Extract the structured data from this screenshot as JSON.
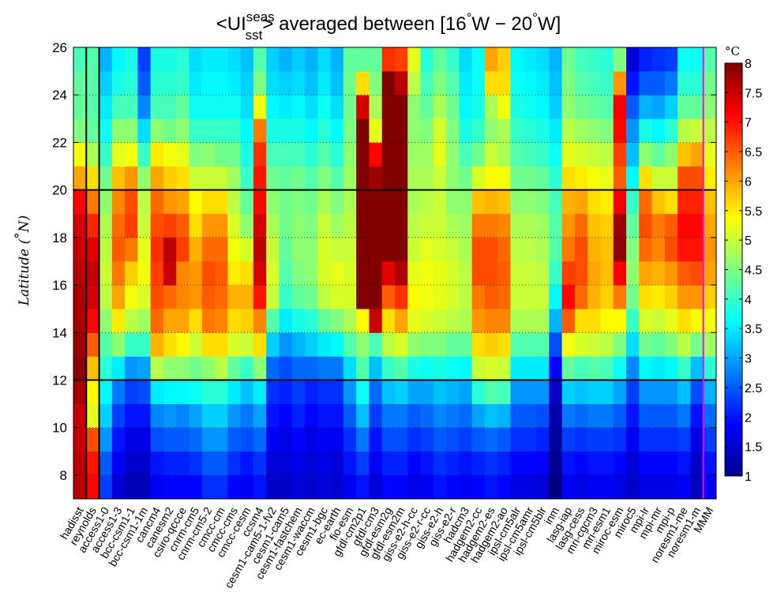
{
  "chart_data": {
    "type": "heatmap",
    "title": {
      "prefix": "<UI",
      "superscript": "seas",
      "subscript": "sst",
      "suffix": "> averaged between [16",
      "deg1": "°",
      "mid": "W − 20",
      "deg2": "°",
      "end": "W]"
    },
    "ylabel": "Latitude (°N)",
    "ylabel_parts": {
      "pre": "Latitude",
      "open": " (",
      "deg": "°",
      "post": "N)"
    },
    "xlabel": "",
    "colorbar": {
      "unit_label": "°C",
      "range": [
        1,
        8
      ],
      "ticks": [
        "1",
        "1.5",
        "2",
        "2.5",
        "3",
        "3.5",
        "4",
        "4.5",
        "5",
        "5.5",
        "6",
        "6.5",
        "7",
        "7.5",
        "8"
      ],
      "colormap": "jet"
    },
    "ylim": [
      7,
      26
    ],
    "yticks": [
      "8",
      "10",
      "12",
      "14",
      "16",
      "18",
      "20",
      "22",
      "24",
      "26"
    ],
    "y_rows": [
      7.5,
      8.5,
      9.5,
      10.5,
      11.5,
      12.5,
      13.5,
      14.5,
      15.5,
      16.5,
      17.5,
      18.5,
      19.5,
      20.5,
      21.5,
      22.5,
      23.5,
      24.5,
      25.5
    ],
    "reference_lines": {
      "horizontal": [
        {
          "lat": 12,
          "color": "#000000"
        },
        {
          "lat": 20,
          "color": "#000000"
        }
      ],
      "vertical": [
        {
          "after_column": "hadisst",
          "color": "#000000"
        },
        {
          "after_column": "reynolds",
          "color": "#000000"
        },
        {
          "after_column": "noresm1-m",
          "color": "#ff00ff"
        }
      ]
    },
    "grid": "dotted",
    "columns": [
      {
        "name": "hadisst",
        "values": [
          7.6,
          7.6,
          7.5,
          7.5,
          7.7,
          7.9,
          7.8,
          7.7,
          7.7,
          7.6,
          7.5,
          7.4,
          7.1,
          6.0,
          5.3,
          4.5,
          4.3,
          4.3,
          4.1
        ]
      },
      {
        "name": "reynolds",
        "values": [
          7.1,
          7.0,
          6.6,
          5.2,
          5.4,
          5.8,
          6.5,
          7.1,
          7.4,
          7.5,
          7.3,
          6.9,
          6.3,
          5.6,
          4.8,
          4.3,
          4.2,
          4.2,
          4.2
        ]
      },
      {
        "name": "access1-0",
        "values": [
          2.3,
          2.5,
          2.9,
          3.3,
          3.6,
          3.9,
          4.2,
          4.6,
          4.9,
          5.0,
          4.9,
          4.8,
          4.6,
          4.4,
          4.0,
          3.7,
          3.5,
          3.3,
          3.1
        ]
      },
      {
        "name": "access1-3",
        "values": [
          1.6,
          1.8,
          2.0,
          2.3,
          2.7,
          3.5,
          4.6,
          5.5,
          6.0,
          6.3,
          6.5,
          6.4,
          6.2,
          5.8,
          5.2,
          4.6,
          4.1,
          3.8,
          3.6
        ]
      },
      {
        "name": "bcc-csm1-1",
        "values": [
          1.4,
          1.5,
          1.7,
          2.0,
          2.3,
          2.9,
          4.0,
          4.9,
          5.3,
          5.7,
          6.3,
          6.7,
          6.6,
          6.1,
          5.3,
          4.6,
          4.1,
          3.9,
          3.8
        ]
      },
      {
        "name": "bcc-csm1-1m",
        "values": [
          1.4,
          1.5,
          1.7,
          2.0,
          2.4,
          3.0,
          4.0,
          4.7,
          5.1,
          5.3,
          5.2,
          5.0,
          4.9,
          4.6,
          4.0,
          3.4,
          2.8,
          2.5,
          2.3
        ]
      },
      {
        "name": "cancm4",
        "values": [
          1.8,
          2.0,
          2.4,
          2.8,
          3.5,
          4.9,
          5.9,
          6.4,
          6.6,
          6.7,
          6.8,
          6.6,
          6.4,
          6.0,
          5.5,
          4.6,
          4.1,
          3.9,
          3.8
        ]
      },
      {
        "name": "canesm2",
        "values": [
          1.9,
          2.1,
          2.5,
          2.9,
          3.6,
          4.6,
          5.6,
          6.0,
          6.4,
          7.5,
          7.6,
          6.7,
          6.1,
          5.7,
          5.3,
          4.4,
          4.1,
          3.9,
          3.8
        ]
      },
      {
        "name": "csiro-qccce",
        "values": [
          1.9,
          2.1,
          2.5,
          2.8,
          3.6,
          4.6,
          5.4,
          6.0,
          6.2,
          6.2,
          6.7,
          6.5,
          6.0,
          5.6,
          5.2,
          4.6,
          4.3,
          4.0,
          3.9
        ]
      },
      {
        "name": "cnrm-cm5",
        "values": [
          1.9,
          2.2,
          2.6,
          3.0,
          3.7,
          4.4,
          5.0,
          5.6,
          6.1,
          6.1,
          5.9,
          5.6,
          5.4,
          5.0,
          4.5,
          4.0,
          3.7,
          3.5,
          3.4
        ]
      },
      {
        "name": "cnrm-cm5-2",
        "values": [
          2.2,
          2.5,
          2.9,
          3.3,
          3.9,
          4.6,
          5.6,
          6.3,
          6.5,
          6.6,
          6.4,
          6.1,
          5.6,
          5.0,
          4.6,
          4.0,
          3.7,
          3.6,
          3.5
        ]
      },
      {
        "name": "cmcc-cm",
        "values": [
          2.2,
          2.5,
          2.9,
          3.3,
          3.9,
          4.9,
          5.6,
          6.2,
          6.4,
          6.5,
          6.4,
          6.1,
          5.6,
          5.0,
          4.4,
          4.0,
          3.7,
          3.6,
          3.5
        ]
      },
      {
        "name": "cmcc-cms",
        "values": [
          1.9,
          2.2,
          2.5,
          2.9,
          3.5,
          4.3,
          5.1,
          5.6,
          5.9,
          5.5,
          5.3,
          5.1,
          4.9,
          4.7,
          4.4,
          4.0,
          3.7,
          3.5,
          3.4
        ]
      },
      {
        "name": "cmcc-cesm",
        "values": [
          1.8,
          2.0,
          2.4,
          2.7,
          3.2,
          4.0,
          5.0,
          5.7,
          5.9,
          5.6,
          5.1,
          4.6,
          4.3,
          4.0,
          3.8,
          3.6,
          3.4,
          3.3,
          3.2
        ]
      },
      {
        "name": "ccsm4",
        "values": [
          2.0,
          2.2,
          2.6,
          3.0,
          3.5,
          4.6,
          5.6,
          6.2,
          7.0,
          7.4,
          7.6,
          7.4,
          7.1,
          7.0,
          6.8,
          6.3,
          5.3,
          4.5,
          4.2
        ]
      },
      {
        "name": "cesm1-cam5-1-fv2",
        "values": [
          1.5,
          1.6,
          1.8,
          2.0,
          2.2,
          2.6,
          3.3,
          4.2,
          5.0,
          5.1,
          5.0,
          4.8,
          4.6,
          4.4,
          4.1,
          3.8,
          3.6,
          3.4,
          3.3
        ]
      },
      {
        "name": "cesm1-cam5",
        "values": [
          1.5,
          1.6,
          1.7,
          1.9,
          2.1,
          2.4,
          2.9,
          3.5,
          4.0,
          4.2,
          4.3,
          4.4,
          4.4,
          4.3,
          4.1,
          3.8,
          3.5,
          3.3,
          3.1
        ]
      },
      {
        "name": "cesm1-fastchem",
        "values": [
          1.6,
          1.7,
          1.9,
          2.1,
          2.3,
          2.6,
          3.1,
          3.8,
          4.3,
          4.5,
          4.6,
          4.6,
          4.5,
          4.4,
          4.1,
          3.8,
          3.6,
          3.4,
          3.3
        ]
      },
      {
        "name": "cesm1-waccm",
        "values": [
          1.5,
          1.6,
          1.7,
          1.9,
          2.1,
          2.6,
          3.3,
          3.9,
          4.4,
          4.6,
          4.6,
          4.5,
          4.4,
          4.2,
          3.9,
          3.6,
          3.4,
          3.2,
          3.1
        ]
      },
      {
        "name": "cesm1-bgc",
        "values": [
          1.6,
          1.7,
          1.8,
          2.0,
          2.2,
          2.7,
          3.5,
          4.3,
          4.9,
          5.1,
          5.1,
          5.0,
          4.8,
          4.5,
          4.2,
          3.9,
          3.7,
          3.5,
          3.4
        ]
      },
      {
        "name": "ec-earth",
        "values": [
          1.5,
          1.6,
          1.8,
          2.0,
          2.2,
          2.7,
          3.6,
          4.5,
          5.1,
          5.2,
          5.0,
          4.7,
          4.5,
          4.2,
          3.9,
          3.6,
          3.4,
          3.2,
          3.1
        ]
      },
      {
        "name": "fio-esm",
        "values": [
          1.8,
          2.0,
          2.2,
          2.5,
          2.9,
          3.4,
          4.2,
          4.8,
          5.1,
          5.1,
          5.0,
          4.9,
          4.8,
          4.7,
          4.6,
          4.5,
          4.4,
          4.4,
          4.3
        ]
      },
      {
        "name": "gfdl-cm2p1",
        "values": [
          2.0,
          2.3,
          2.7,
          3.2,
          3.7,
          4.2,
          4.6,
          5.4,
          8.0,
          8.0,
          8.0,
          8.0,
          8.0,
          8.0,
          8.0,
          8.0,
          7.4,
          5.6,
          4.3
        ]
      },
      {
        "name": "gfdl-cm3",
        "values": [
          1.6,
          1.8,
          2.0,
          2.3,
          2.6,
          3.2,
          4.1,
          7.5,
          8.0,
          8.0,
          8.0,
          8.0,
          8.0,
          7.8,
          7.1,
          5.2,
          4.8,
          4.5,
          4.3
        ]
      },
      {
        "name": "gfdl-esm2g",
        "values": [
          1.9,
          2.1,
          2.4,
          2.7,
          3.2,
          4.0,
          4.9,
          5.6,
          6.5,
          7.3,
          8.0,
          8.0,
          8.0,
          8.0,
          8.0,
          8.0,
          8.0,
          8.0,
          6.8
        ]
      },
      {
        "name": "gfdl-esm2m",
        "values": [
          1.9,
          2.1,
          2.4,
          2.7,
          3.3,
          4.2,
          5.1,
          6.0,
          6.8,
          7.7,
          8.0,
          8.0,
          8.0,
          8.0,
          8.0,
          8.0,
          8.0,
          7.6,
          6.7
        ]
      },
      {
        "name": "giss-e2-h-cc",
        "values": [
          1.7,
          1.9,
          2.2,
          2.5,
          3.0,
          3.8,
          4.6,
          5.2,
          5.4,
          5.2,
          5.0,
          4.9,
          4.8,
          4.8,
          4.7,
          4.6,
          4.6,
          4.9,
          5.2
        ]
      },
      {
        "name": "giss-e2-r-cc",
        "values": [
          1.8,
          2.0,
          2.3,
          2.6,
          3.0,
          3.7,
          4.5,
          5.1,
          5.3,
          5.3,
          5.2,
          5.0,
          4.9,
          4.8,
          4.7,
          4.5,
          4.3,
          4.1,
          3.9
        ]
      },
      {
        "name": "giss-e2-h",
        "values": [
          2.0,
          2.2,
          2.5,
          2.8,
          3.2,
          3.8,
          4.5,
          5.0,
          5.2,
          5.2,
          5.1,
          5.0,
          5.0,
          5.0,
          5.2,
          5.1,
          4.8,
          4.5,
          4.3
        ]
      },
      {
        "name": "giss-e2-r",
        "values": [
          1.9,
          2.1,
          2.4,
          2.7,
          3.1,
          3.7,
          4.3,
          4.9,
          5.1,
          5.1,
          5.0,
          4.8,
          4.6,
          4.6,
          4.6,
          4.5,
          4.4,
          4.2,
          4.0
        ]
      },
      {
        "name": "hadcm3",
        "values": [
          1.8,
          2.0,
          2.3,
          2.6,
          3.0,
          3.6,
          4.3,
          4.8,
          4.9,
          4.9,
          4.8,
          4.7,
          4.6,
          4.4,
          4.1,
          3.8,
          3.6,
          3.5,
          3.4
        ]
      },
      {
        "name": "hadgem2-cc",
        "values": [
          1.9,
          2.1,
          2.5,
          3.0,
          3.9,
          5.0,
          5.6,
          6.1,
          6.3,
          6.6,
          6.6,
          6.3,
          5.8,
          5.1,
          4.4,
          4.0,
          3.8,
          3.7,
          3.7
        ]
      },
      {
        "name": "hadgem2-es",
        "values": [
          2.0,
          2.2,
          2.6,
          3.2,
          4.2,
          5.1,
          5.7,
          6.2,
          6.5,
          6.6,
          6.6,
          6.3,
          5.9,
          5.4,
          5.0,
          4.6,
          4.8,
          5.6,
          6.0
        ]
      },
      {
        "name": "hadgem2-ao",
        "values": [
          1.9,
          2.1,
          2.5,
          3.1,
          4.1,
          5.0,
          5.6,
          6.2,
          6.4,
          6.5,
          6.4,
          6.2,
          5.8,
          5.3,
          4.8,
          4.8,
          5.3,
          5.6,
          5.7
        ]
      },
      {
        "name": "ipsl-cm5alr",
        "values": [
          1.7,
          1.9,
          2.2,
          2.5,
          2.9,
          3.5,
          4.2,
          4.8,
          5.0,
          5.0,
          4.9,
          4.8,
          4.6,
          4.4,
          4.2,
          4.0,
          3.8,
          3.7,
          3.6
        ]
      },
      {
        "name": "ipsl-cm5amr",
        "values": [
          1.7,
          1.9,
          2.2,
          2.5,
          2.9,
          3.5,
          4.2,
          4.8,
          5.0,
          5.0,
          4.9,
          4.8,
          4.6,
          4.4,
          4.1,
          3.9,
          3.7,
          3.6,
          3.5
        ]
      },
      {
        "name": "ipsl-cm5blr",
        "values": [
          1.6,
          1.8,
          2.1,
          2.4,
          2.9,
          3.5,
          4.2,
          4.8,
          5.0,
          4.9,
          4.8,
          4.7,
          4.5,
          4.3,
          4.0,
          3.8,
          3.6,
          3.5,
          3.4
        ]
      },
      {
        "name": "inm",
        "values": [
          1.0,
          1.1,
          1.2,
          1.3,
          1.5,
          1.9,
          2.4,
          3.1,
          3.6,
          4.0,
          4.2,
          4.2,
          4.1,
          3.9,
          3.7,
          3.5,
          3.3,
          3.2,
          3.1
        ]
      },
      {
        "name": "lasg-iap",
        "values": [
          1.8,
          2.0,
          2.3,
          2.7,
          3.3,
          4.3,
          5.3,
          6.5,
          7.1,
          6.7,
          6.3,
          6.1,
          5.9,
          5.6,
          5.2,
          4.9,
          4.6,
          4.5,
          4.4
        ]
      },
      {
        "name": "lasg-cess",
        "values": [
          1.7,
          1.9,
          2.2,
          2.6,
          3.2,
          4.1,
          5.1,
          5.6,
          6.4,
          6.6,
          6.6,
          6.4,
          6.0,
          5.5,
          5.1,
          4.7,
          4.4,
          4.2,
          4.1
        ]
      },
      {
        "name": "mri-cgcm3",
        "values": [
          1.8,
          2.0,
          2.3,
          2.7,
          3.3,
          4.2,
          5.0,
          5.6,
          5.9,
          6.0,
          5.9,
          5.8,
          5.6,
          5.3,
          5.0,
          4.6,
          4.3,
          4.1,
          4.0
        ]
      },
      {
        "name": "mri-esm1",
        "values": [
          1.8,
          2.0,
          2.3,
          2.7,
          3.3,
          4.1,
          4.9,
          5.4,
          5.7,
          5.8,
          5.8,
          5.7,
          5.5,
          5.2,
          4.9,
          4.5,
          4.2,
          4.0,
          3.9
        ]
      },
      {
        "name": "miroc-esm",
        "values": [
          1.7,
          1.9,
          2.2,
          2.5,
          3.0,
          3.7,
          4.5,
          5.4,
          6.3,
          7.2,
          7.9,
          7.8,
          7.2,
          6.5,
          6.7,
          7.1,
          7.2,
          6.1,
          4.5
        ]
      },
      {
        "name": "miroc5",
        "values": [
          1.5,
          1.6,
          1.8,
          2.0,
          2.3,
          2.8,
          3.4,
          4.0,
          4.4,
          4.6,
          4.5,
          4.3,
          4.0,
          3.6,
          3.2,
          2.9,
          2.5,
          2.0,
          1.6
        ]
      },
      {
        "name": "mpi-lr",
        "values": [
          1.7,
          1.9,
          2.2,
          2.5,
          2.9,
          3.6,
          4.4,
          5.1,
          5.6,
          6.0,
          6.4,
          6.6,
          6.4,
          5.6,
          4.6,
          3.8,
          3.1,
          2.5,
          2.1
        ]
      },
      {
        "name": "mpi-mr",
        "values": [
          1.7,
          1.9,
          2.2,
          2.5,
          2.9,
          3.5,
          4.3,
          5.0,
          5.5,
          5.9,
          6.2,
          6.3,
          5.8,
          5.0,
          4.3,
          3.6,
          3.0,
          2.5,
          2.2
        ]
      },
      {
        "name": "mpi-p",
        "values": [
          1.7,
          1.9,
          2.2,
          2.5,
          2.9,
          3.6,
          4.5,
          5.2,
          5.7,
          6.1,
          6.6,
          6.5,
          5.6,
          5.0,
          4.6,
          3.9,
          3.3,
          2.7,
          2.3
        ]
      },
      {
        "name": "noresm1-me",
        "values": [
          1.8,
          2.0,
          2.3,
          2.7,
          3.2,
          4.0,
          4.9,
          5.6,
          6.1,
          6.5,
          7.0,
          7.1,
          6.9,
          6.6,
          5.8,
          4.9,
          4.3,
          3.9,
          3.7
        ]
      },
      {
        "name": "noresm1-m",
        "values": [
          1.4,
          1.5,
          1.7,
          2.0,
          2.4,
          3.2,
          4.4,
          5.4,
          6.1,
          6.6,
          7.0,
          7.1,
          6.9,
          6.6,
          6.0,
          5.0,
          4.3,
          3.9,
          3.7
        ]
      },
      {
        "name": "MMM",
        "values": [
          1.8,
          2.0,
          2.3,
          2.6,
          3.1,
          3.9,
          4.7,
          5.3,
          5.7,
          6.0,
          6.1,
          6.0,
          5.8,
          5.5,
          5.2,
          4.9,
          4.6,
          4.4,
          4.2
        ]
      }
    ]
  }
}
